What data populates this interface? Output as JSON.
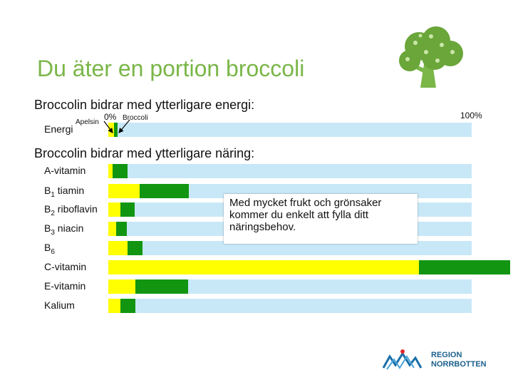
{
  "title": "Du äter en portion broccoli",
  "energy_section": {
    "heading": "Broccolin bidrar med ytterligare energi:",
    "row_label": "Energi",
    "apelsin_label": "Apelsin",
    "zero_label": "0%",
    "broccoli_label": "Broccoli",
    "hundred_label": "100%",
    "apelsin_pct": 1.5,
    "broccoli_pct": 1.0
  },
  "nutrition_section": {
    "heading": "Broccolin bidrar med ytterligare näring:",
    "rows": [
      {
        "label": "A-vitamin",
        "sub": "",
        "apelsin_pct": 1.2,
        "broccoli_pct": 4.0
      },
      {
        "label": "B",
        "sub": "1",
        "suffix": " tiamin",
        "apelsin_pct": 8.6,
        "broccoli_pct": 13.5
      },
      {
        "label": "B",
        "sub": "2",
        "suffix": " riboflavin",
        "apelsin_pct": 3.3,
        "broccoli_pct": 4.0
      },
      {
        "label": "B",
        "sub": "3",
        "suffix": " niacin",
        "apelsin_pct": 2.2,
        "broccoli_pct": 2.9
      },
      {
        "label": "B",
        "sub": "6",
        "suffix": "",
        "apelsin_pct": 5.3,
        "broccoli_pct": 4.1
      },
      {
        "label": "C-vitamin",
        "sub": "",
        "apelsin_pct": 85.5,
        "broccoli_pct": 25.0
      },
      {
        "label": "E-vitamin",
        "sub": "",
        "apelsin_pct": 7.5,
        "broccoli_pct": 14.5
      },
      {
        "label": "Kalium",
        "sub": "",
        "apelsin_pct": 3.3,
        "broccoli_pct": 4.1
      }
    ]
  },
  "callout": "Med mycket frukt och grönsaker kommer du enkelt att fylla ditt näringsbehov.",
  "logo": {
    "line1": "REGION",
    "line2": "NORRBOTTEN"
  },
  "colors": {
    "apelsin": "#ffff00",
    "broccoli": "#129612",
    "track": "#c8e8f8",
    "title": "#7ab648"
  },
  "icons": [
    "broccoli-icon",
    "region-norrbotten-logo-icon"
  ]
}
